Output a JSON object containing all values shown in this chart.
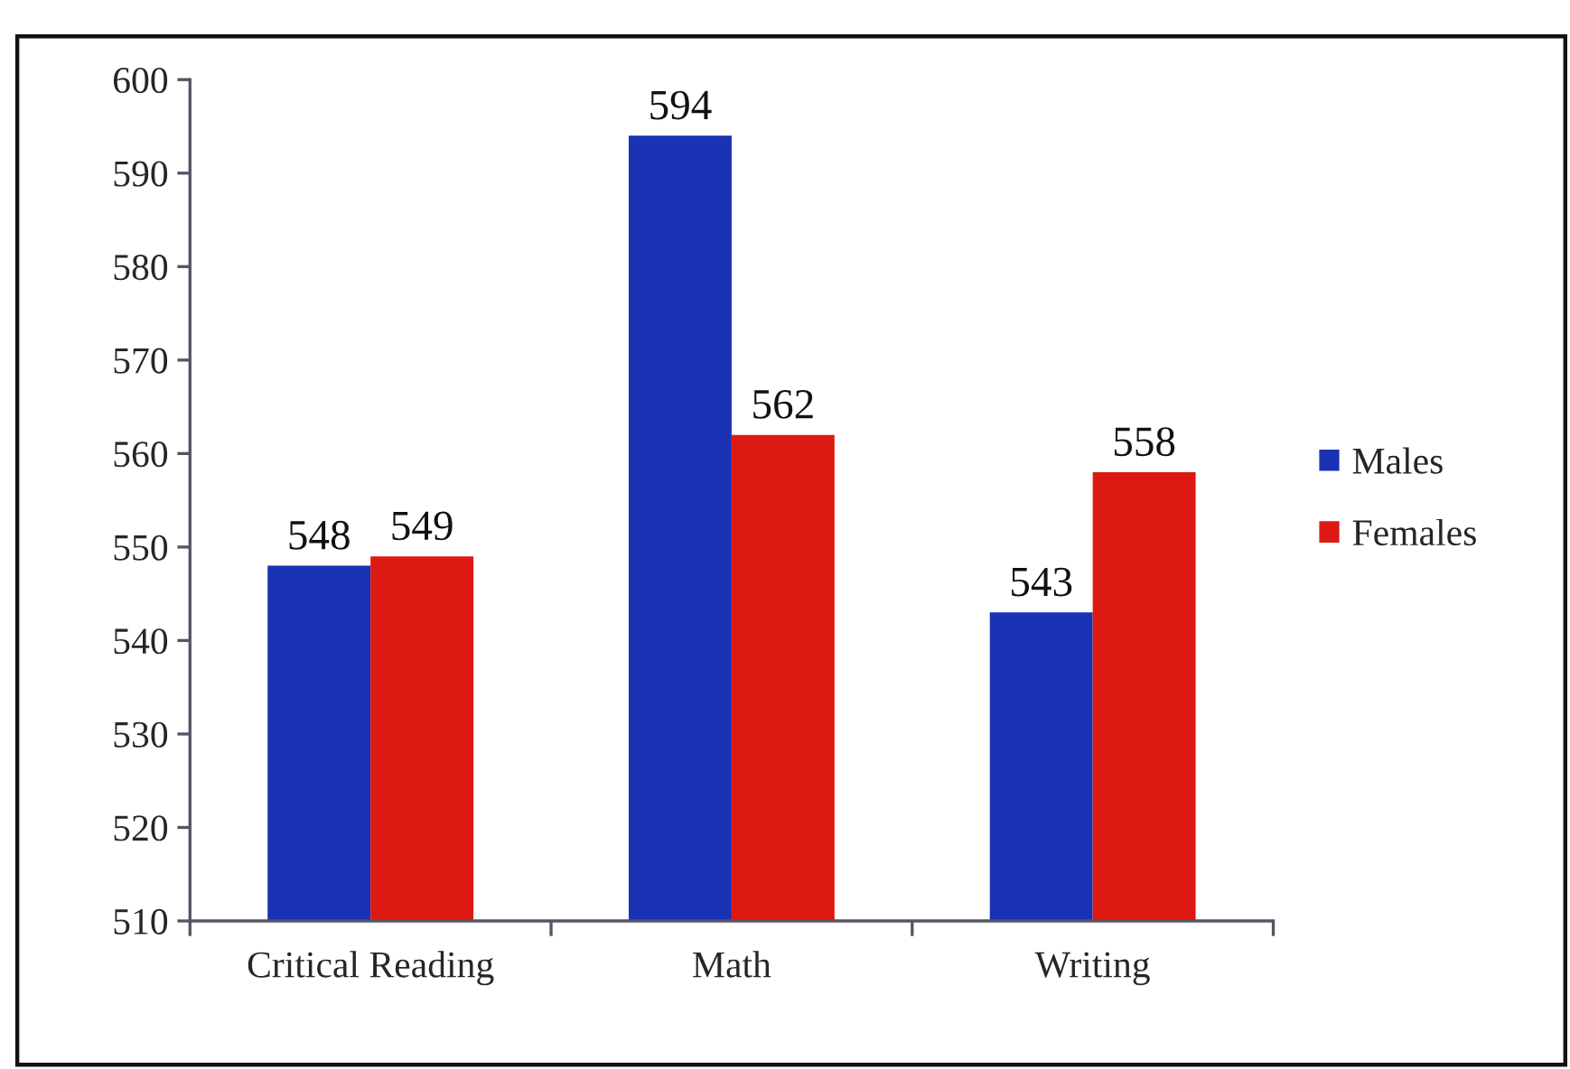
{
  "chart_data": {
    "type": "bar",
    "categories": [
      "Critical Reading",
      "Math",
      "Writing"
    ],
    "series": [
      {
        "name": "Males",
        "color": "#1a32b4",
        "values": [
          548,
          594,
          543
        ]
      },
      {
        "name": "Females",
        "color": "#dc1a12",
        "values": [
          549,
          562,
          558
        ]
      }
    ],
    "ylim": [
      510,
      600
    ],
    "yticks": [
      510,
      520,
      530,
      540,
      550,
      560,
      570,
      580,
      590,
      600
    ],
    "data_labels": true,
    "grid": false,
    "legend": "right"
  }
}
